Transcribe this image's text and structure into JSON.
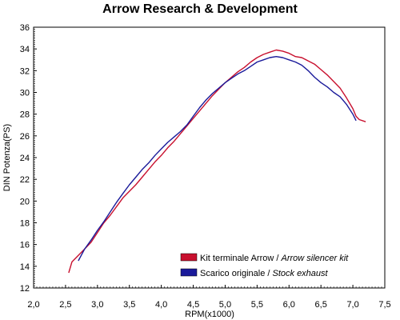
{
  "chart_data": {
    "type": "line",
    "title": "Arrow Research & Development",
    "xlabel": "RPM(x1000)",
    "ylabel": "DIN Potenza(PS)",
    "xlim": [
      2.0,
      7.5
    ],
    "ylim": [
      12,
      36
    ],
    "xticks": [
      "2,0",
      "2,5",
      "3,0",
      "3,5",
      "4,0",
      "4,5",
      "5,0",
      "5,5",
      "6,0",
      "6,5",
      "7,0",
      "7,5"
    ],
    "yticks": [
      "12",
      "14",
      "16",
      "18",
      "20",
      "22",
      "24",
      "26",
      "28",
      "30",
      "32",
      "34",
      "36"
    ],
    "grid": false,
    "legend_position": "bottom-right",
    "series": [
      {
        "name": "Kit terminale Arrow / Arrow silencer kit",
        "legend_plain": "Kit terminale Arrow / ",
        "legend_italic": "Arrow silencer kit",
        "color": "#c8102e",
        "x": [
          2.55,
          2.6,
          2.7,
          2.8,
          2.9,
          3.0,
          3.1,
          3.2,
          3.3,
          3.4,
          3.5,
          3.6,
          3.7,
          3.8,
          3.9,
          4.0,
          4.1,
          4.2,
          4.3,
          4.4,
          4.5,
          4.6,
          4.7,
          4.8,
          4.9,
          5.0,
          5.1,
          5.2,
          5.3,
          5.4,
          5.5,
          5.6,
          5.7,
          5.8,
          5.9,
          6.0,
          6.1,
          6.2,
          6.3,
          6.4,
          6.5,
          6.6,
          6.7,
          6.8,
          6.9,
          7.0,
          7.05,
          7.1,
          7.2
        ],
        "y": [
          13.4,
          14.4,
          15.0,
          15.6,
          16.2,
          17.1,
          18.0,
          18.7,
          19.5,
          20.3,
          20.9,
          21.5,
          22.2,
          22.9,
          23.6,
          24.2,
          24.9,
          25.5,
          26.2,
          26.9,
          27.6,
          28.3,
          29.0,
          29.7,
          30.3,
          30.9,
          31.4,
          31.9,
          32.3,
          32.8,
          33.2,
          33.5,
          33.7,
          33.9,
          33.8,
          33.6,
          33.3,
          33.2,
          32.9,
          32.6,
          32.1,
          31.6,
          31.0,
          30.4,
          29.5,
          28.5,
          27.8,
          27.5,
          27.3
        ]
      },
      {
        "name": "Scarico originale / Stock exhaust",
        "legend_plain": "Scarico originale / ",
        "legend_italic": "Stock exhaust",
        "color": "#1a1a9a",
        "x": [
          2.7,
          2.8,
          2.9,
          3.0,
          3.1,
          3.2,
          3.3,
          3.4,
          3.5,
          3.6,
          3.7,
          3.8,
          3.9,
          4.0,
          4.1,
          4.2,
          4.3,
          4.4,
          4.5,
          4.6,
          4.7,
          4.8,
          4.9,
          5.0,
          5.1,
          5.2,
          5.3,
          5.4,
          5.5,
          5.6,
          5.7,
          5.8,
          5.9,
          6.0,
          6.1,
          6.2,
          6.3,
          6.4,
          6.5,
          6.6,
          6.7,
          6.8,
          6.9,
          7.0,
          7.05
        ],
        "y": [
          14.5,
          15.6,
          16.4,
          17.3,
          18.1,
          19.0,
          19.9,
          20.7,
          21.5,
          22.2,
          22.9,
          23.5,
          24.2,
          24.8,
          25.4,
          25.9,
          26.4,
          27.0,
          27.8,
          28.6,
          29.3,
          29.9,
          30.4,
          30.9,
          31.3,
          31.7,
          32.0,
          32.4,
          32.8,
          33.0,
          33.2,
          33.3,
          33.2,
          33.0,
          32.8,
          32.5,
          32.0,
          31.4,
          30.9,
          30.5,
          30.0,
          29.6,
          28.9,
          28.0,
          27.4
        ]
      }
    ]
  }
}
